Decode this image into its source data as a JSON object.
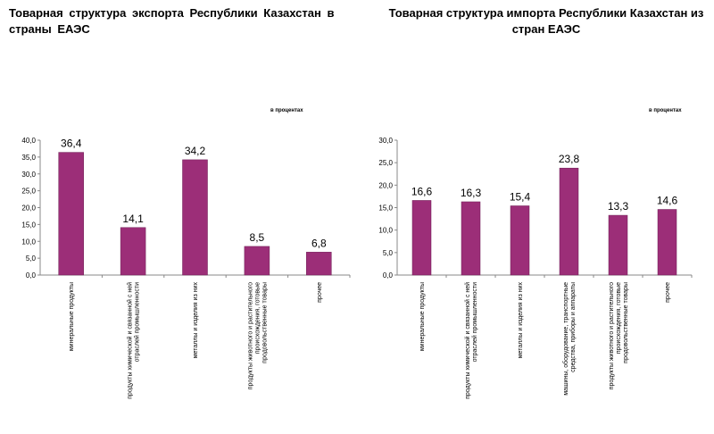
{
  "chart_data": [
    {
      "type": "bar",
      "title": "Товарная структура экспорта Республики Казахстан в страны ЕАЭС",
      "unit_note": "в процентах",
      "categories": [
        "минеральные продукты",
        "продукты химической и связанной с ней отраслей промышленности",
        "металлы и изделия из них",
        "продукты животного и растительного происхождения, готовые продовольственные товары",
        "прочее"
      ],
      "values": [
        36.4,
        14.1,
        34.2,
        8.5,
        6.8
      ],
      "value_labels": [
        "36,4",
        "14,1",
        "34,2",
        "8,5",
        "6,8"
      ],
      "ylim": [
        0,
        40
      ],
      "yticks": [
        "0,0",
        "5,0",
        "10,0",
        "15,0",
        "20,0",
        "25,0",
        "30,0",
        "35,0",
        "40,0"
      ],
      "grid": false,
      "legend": "none",
      "bar_color": "#9c2e78"
    },
    {
      "type": "bar",
      "title": "Товарная структура импорта Республики Казахстан из стран ЕАЭС",
      "unit_note": "в процентах",
      "categories": [
        "минеральные продукты",
        "продукты химической и связанной с ней отраслей промышленности",
        "металлы и изделия из них",
        "машины, оборудование, транспортные средства, приборы и аппараты",
        "продукты животного и растительного происхождения, готовые продовольственные товары",
        "прочее"
      ],
      "values": [
        16.6,
        16.3,
        15.4,
        23.8,
        13.3,
        14.6
      ],
      "value_labels": [
        "16,6",
        "16,3",
        "15,4",
        "23,8",
        "13,3",
        "14,6"
      ],
      "ylim": [
        0,
        30
      ],
      "yticks": [
        "0,0",
        "5,0",
        "10,0",
        "15,0",
        "20,0",
        "25,0",
        "30,0"
      ],
      "grid": false,
      "legend": "none",
      "bar_color": "#9c2e78"
    }
  ]
}
